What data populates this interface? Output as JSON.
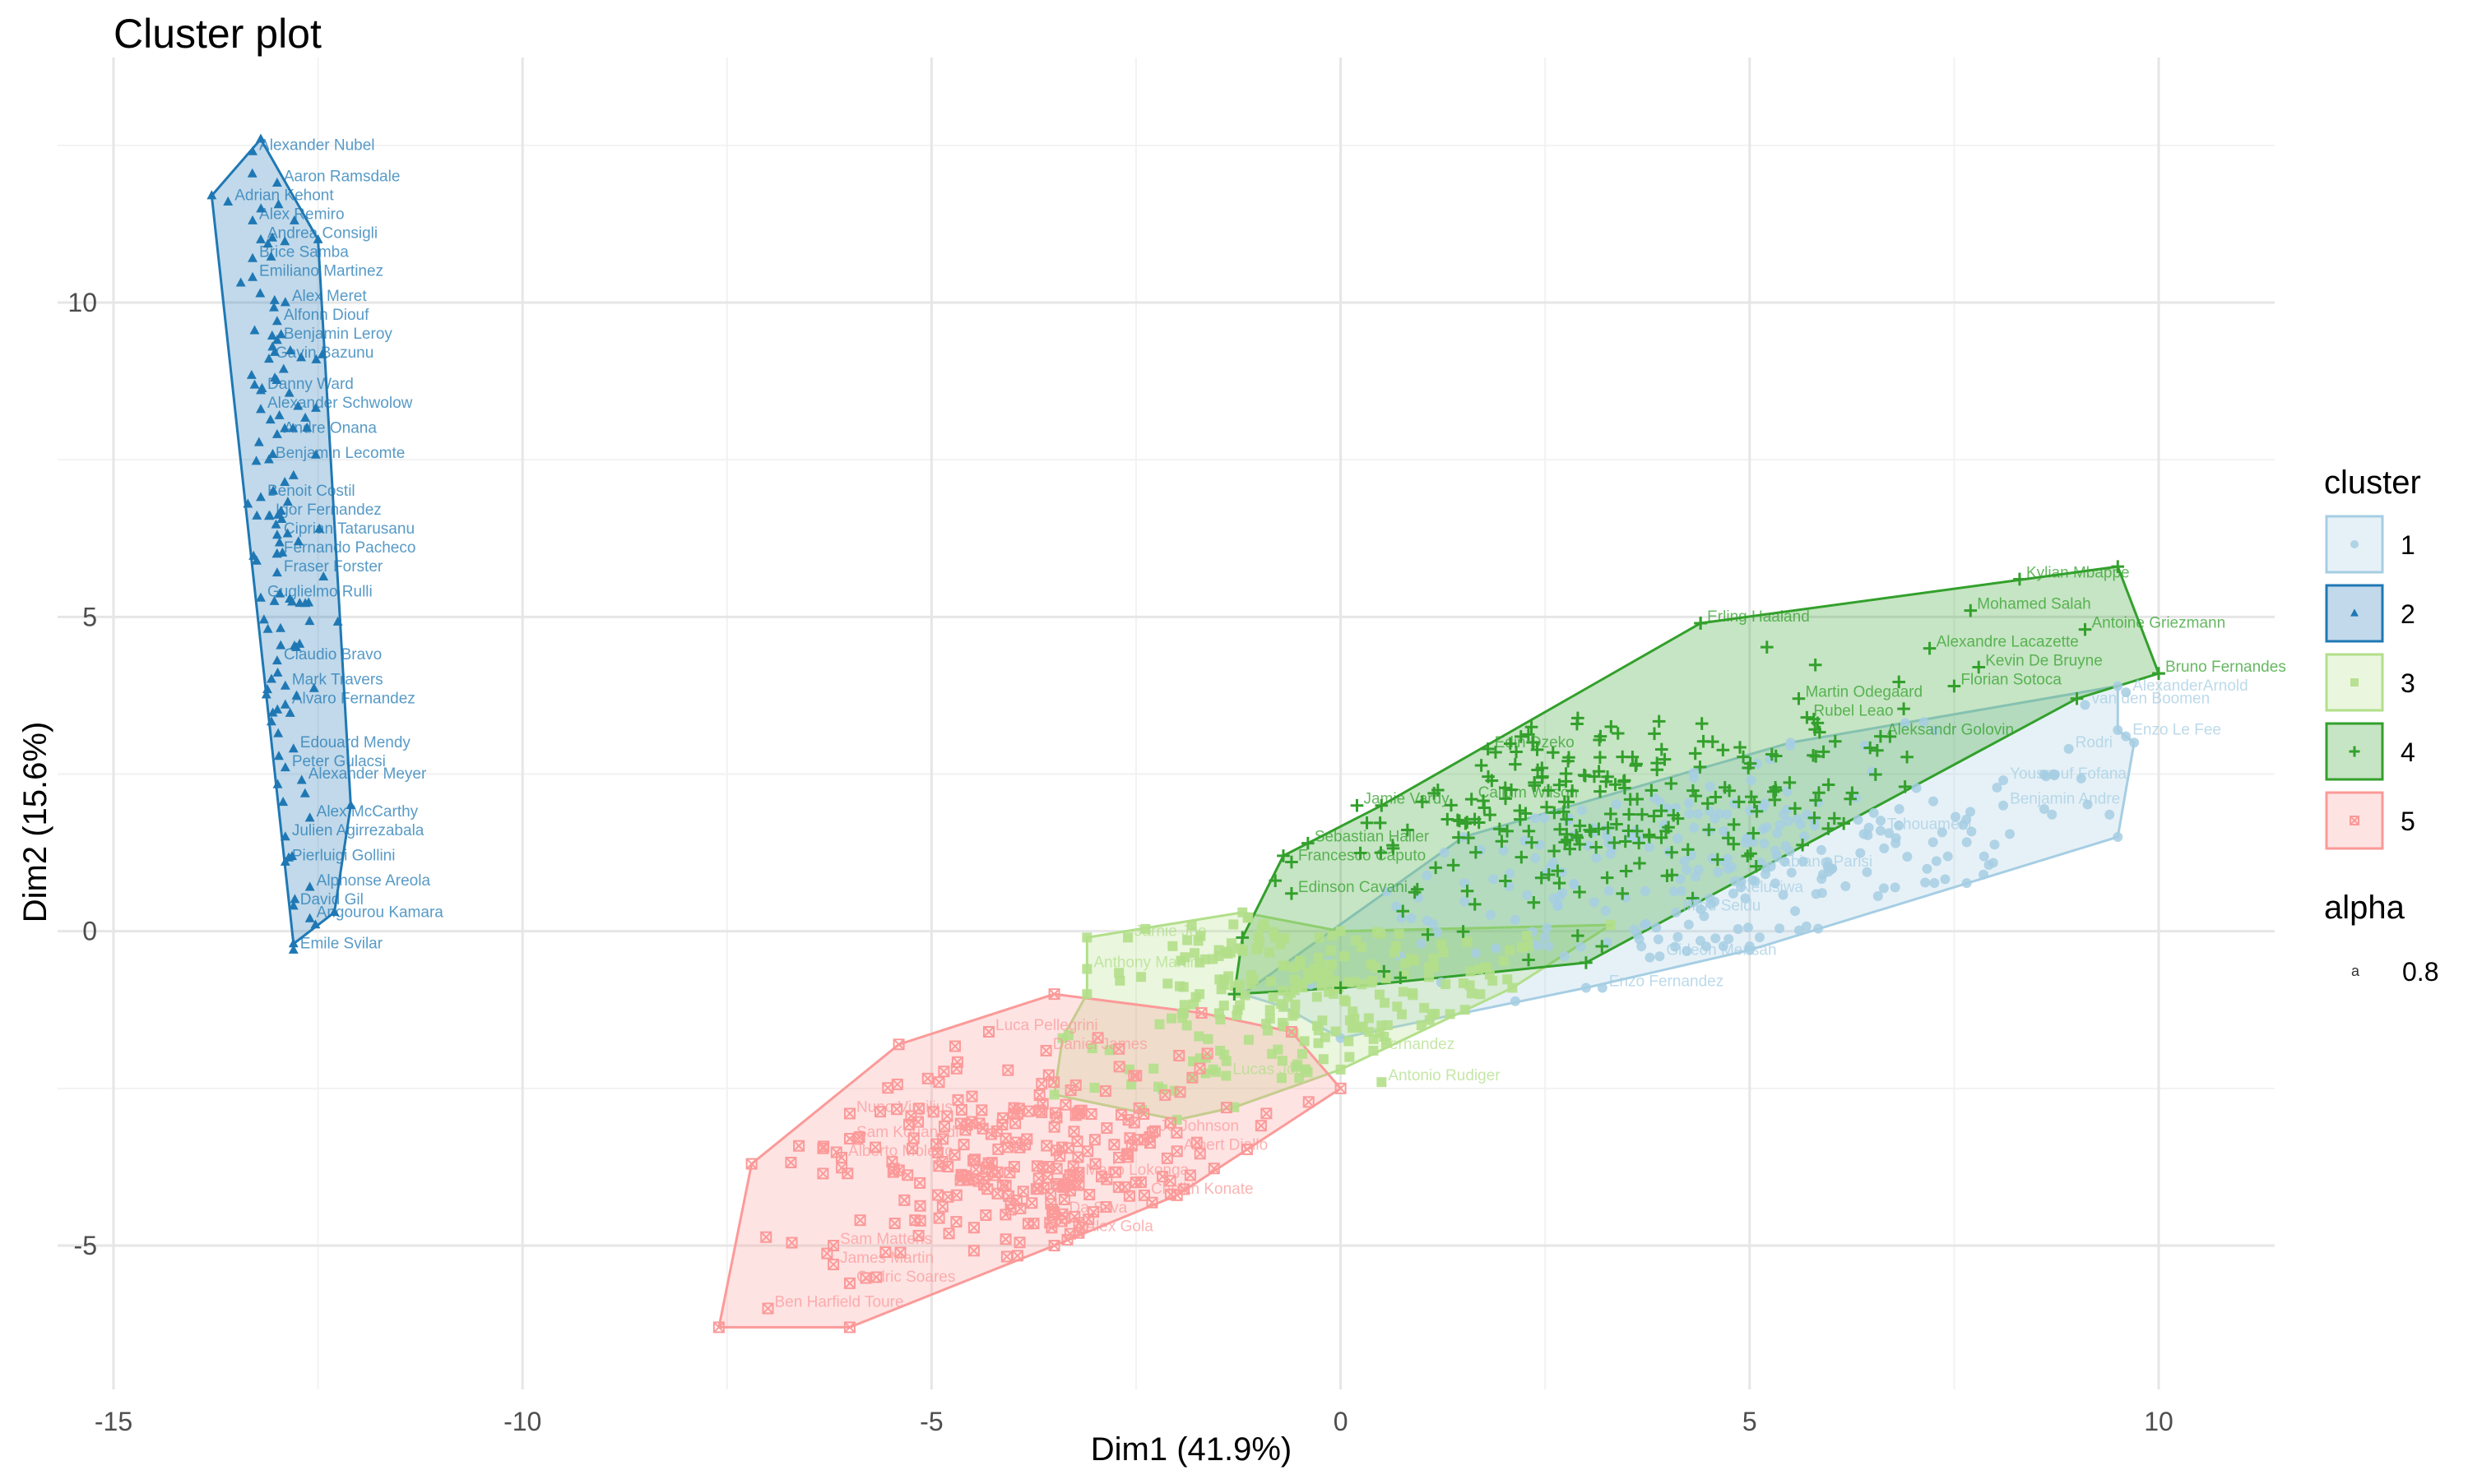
{
  "chart_data": {
    "type": "scatter",
    "title": "Cluster plot",
    "xlabel": "Dim1 (41.9%)",
    "ylabel": "Dim2 (15.6%)",
    "xlim": [
      -15,
      11
    ],
    "ylim": [
      -7,
      13.5
    ],
    "x_ticks": [
      -15,
      -10,
      -5,
      0,
      5,
      10
    ],
    "y_ticks": [
      -5,
      0,
      5,
      10
    ],
    "grid": true,
    "legend_position": "right",
    "legend": {
      "cluster_title": "cluster",
      "alpha_title": "alpha",
      "alpha_value": "0.8",
      "alpha_key_glyph": "a"
    },
    "colors": {
      "1": "#a6cee3",
      "2": "#1f78b4",
      "3": "#b2df8a",
      "4": "#33a02c",
      "5": "#fb9a99"
    },
    "clusters": [
      {
        "name": "1",
        "shape": "circle",
        "hull": [
          [
            -0.7,
            -1.2
          ],
          [
            -1.2,
            -1.0
          ],
          [
            1.5,
            1.5
          ],
          [
            5.5,
            3.0
          ],
          [
            9.5,
            3.9
          ],
          [
            9.5,
            3.2
          ],
          [
            9.7,
            3.0
          ],
          [
            9.5,
            1.5
          ],
          [
            5.0,
            -0.3
          ],
          [
            3.0,
            -0.9
          ],
          [
            0.0,
            -1.7
          ]
        ],
        "center": [
          4.8,
          1.0
        ],
        "spread": [
          2.6,
          1.0
        ],
        "n": 260,
        "labels": [
          {
            "text": "Enzo Le Fee",
            "x": 9.6,
            "y": 3.1
          },
          {
            "text": "Rodri",
            "x": 8.9,
            "y": 2.9
          },
          {
            "text": "Youssouf Fofana",
            "x": 8.1,
            "y": 2.4
          },
          {
            "text": "Benjamin Andre",
            "x": 8.1,
            "y": 2.0
          },
          {
            "text": "Tchouameni",
            "x": 6.6,
            "y": 1.6
          },
          {
            "text": "Fabiano Parisi",
            "x": 5.2,
            "y": 1.0
          },
          {
            "text": "Nelusiwa",
            "x": 4.8,
            "y": 0.6
          },
          {
            "text": "Mihu Seidu",
            "x": 4.1,
            "y": 0.3
          },
          {
            "text": "Gideon Mensah",
            "x": 3.9,
            "y": -0.4
          },
          {
            "text": "Enzo Fernandez",
            "x": 3.2,
            "y": -0.9
          },
          {
            "text": "van den Boomen",
            "x": 9.1,
            "y": 3.6
          },
          {
            "text": "AlexanderArnold",
            "x": 9.6,
            "y": 3.8
          }
        ]
      },
      {
        "name": "2",
        "shape": "triangle",
        "hull": [
          [
            -13.2,
            12.6
          ],
          [
            -13.8,
            11.7
          ],
          [
            -12.8,
            -0.2
          ],
          [
            -12.3,
            0.3
          ],
          [
            -12.1,
            2.0
          ],
          [
            -12.5,
            11.0
          ]
        ],
        "center": [
          -13.0,
          6.3
        ],
        "spread": [
          0.25,
          3.4
        ],
        "n": 95,
        "labels": [
          {
            "text": "Alexander Nubel",
            "x": -13.3,
            "y": 12.4
          },
          {
            "text": "Aaron Ramsdale",
            "x": -13.0,
            "y": 11.9
          },
          {
            "text": "Adrian Kehont",
            "x": -13.6,
            "y": 11.6
          },
          {
            "text": "Alex Remiro",
            "x": -13.3,
            "y": 11.3
          },
          {
            "text": "Andrea Consigli",
            "x": -13.2,
            "y": 11.0
          },
          {
            "text": "Brice Samba",
            "x": -13.3,
            "y": 10.7
          },
          {
            "text": "Emiliano Martinez",
            "x": -13.3,
            "y": 10.4
          },
          {
            "text": "Alex Meret",
            "x": -12.9,
            "y": 10.0
          },
          {
            "text": "Alfonn Diouf",
            "x": -13.0,
            "y": 9.7
          },
          {
            "text": "Benjamin Leroy",
            "x": -13.0,
            "y": 9.4
          },
          {
            "text": "Gavin Bazunu",
            "x": -13.1,
            "y": 9.1
          },
          {
            "text": "Danny Ward",
            "x": -13.2,
            "y": 8.6
          },
          {
            "text": "Alexander Schwolow",
            "x": -13.2,
            "y": 8.3
          },
          {
            "text": "Andre Onana",
            "x": -13.0,
            "y": 7.9
          },
          {
            "text": "Benjamin Lecomte",
            "x": -13.1,
            "y": 7.5
          },
          {
            "text": "Benoit Costil",
            "x": -13.2,
            "y": 6.9
          },
          {
            "text": "Igor Fernandez",
            "x": -13.1,
            "y": 6.6
          },
          {
            "text": "Ciprian Tatarusanu",
            "x": -13.0,
            "y": 6.3
          },
          {
            "text": "Fernando Pacheco",
            "x": -13.0,
            "y": 6.0
          },
          {
            "text": "Fraser Forster",
            "x": -13.0,
            "y": 5.7
          },
          {
            "text": "Guglielmo Rulli",
            "x": -13.2,
            "y": 5.3
          },
          {
            "text": "Claudio Bravo",
            "x": -13.0,
            "y": 4.3
          },
          {
            "text": "Mark Travers",
            "x": -12.9,
            "y": 3.9
          },
          {
            "text": "Alvaro Fernandez",
            "x": -12.9,
            "y": 3.6
          },
          {
            "text": "Edouard Mendy",
            "x": -12.8,
            "y": 2.9
          },
          {
            "text": "Peter Gulacsi",
            "x": -12.9,
            "y": 2.6
          },
          {
            "text": "Alexander Meyer",
            "x": -12.7,
            "y": 2.4
          },
          {
            "text": "Alex McCarthy",
            "x": -12.6,
            "y": 1.8
          },
          {
            "text": "Julien Agirrezabala",
            "x": -12.9,
            "y": 1.5
          },
          {
            "text": "Pierluigi Gollini",
            "x": -12.9,
            "y": 1.1
          },
          {
            "text": "Alphonse Areola",
            "x": -12.6,
            "y": 0.7
          },
          {
            "text": "David Gil",
            "x": -12.8,
            "y": 0.4
          },
          {
            "text": "Angourou Kamara",
            "x": -12.6,
            "y": 0.2
          },
          {
            "text": "Emile Svilar",
            "x": -12.8,
            "y": -0.3
          }
        ]
      },
      {
        "name": "3",
        "shape": "square",
        "hull": [
          [
            -3.5,
            -2.6
          ],
          [
            -3.4,
            -1.7
          ],
          [
            -3.1,
            -1.0
          ],
          [
            -3.1,
            -0.1
          ],
          [
            -1.2,
            0.3
          ],
          [
            0.0,
            0.0
          ],
          [
            3.3,
            0.1
          ],
          [
            2.1,
            -0.9
          ],
          [
            0.0,
            -2.2
          ],
          [
            -1.3,
            -2.8
          ],
          [
            -2.0,
            -3.0
          ]
        ],
        "center": [
          -0.3,
          -1.0
        ],
        "spread": [
          1.6,
          0.9
        ],
        "n": 240,
        "labels": [
          {
            "text": "Anthony Martin",
            "x": -3.1,
            "y": -0.6
          },
          {
            "text": "Jarnie Joe",
            "x": -2.6,
            "y": -0.1
          },
          {
            "text": "Lucas Joao",
            "x": -1.4,
            "y": -2.3
          },
          {
            "text": "Antonio Rudiger",
            "x": 0.5,
            "y": -2.4
          },
          {
            "text": "Fernandez",
            "x": 0.4,
            "y": -1.9
          }
        ]
      },
      {
        "name": "4",
        "shape": "plus",
        "hull": [
          [
            -1.3,
            -1.0
          ],
          [
            -1.2,
            -0.1
          ],
          [
            -0.7,
            1.2
          ],
          [
            0.5,
            2.0
          ],
          [
            4.4,
            4.9
          ],
          [
            9.5,
            5.8
          ],
          [
            10.0,
            4.1
          ],
          [
            9.0,
            3.7
          ],
          [
            3.0,
            -0.5
          ],
          [
            0.0,
            -0.9
          ]
        ],
        "center": [
          3.4,
          1.9
        ],
        "spread": [
          2.1,
          0.9
        ],
        "n": 230,
        "labels": [
          {
            "text": "Kylian Mbappe",
            "x": 8.3,
            "y": 5.6
          },
          {
            "text": "Mohamed Salah",
            "x": 7.7,
            "y": 5.1
          },
          {
            "text": "Erling Haaland",
            "x": 4.4,
            "y": 4.9
          },
          {
            "text": "Antoine Griezmann",
            "x": 9.1,
            "y": 4.8
          },
          {
            "text": "Alexandre Lacazette",
            "x": 7.2,
            "y": 4.5
          },
          {
            "text": "Kevin De Bruyne",
            "x": 7.8,
            "y": 4.2
          },
          {
            "text": "Florian Sotoca",
            "x": 7.5,
            "y": 3.9
          },
          {
            "text": "Bruno Fernandes",
            "x": 10.0,
            "y": 4.1
          },
          {
            "text": "Martin Odegaard",
            "x": 5.6,
            "y": 3.7
          },
          {
            "text": "Rubel Leao",
            "x": 5.7,
            "y": 3.4
          },
          {
            "text": "Aleksandr Golovin",
            "x": 6.6,
            "y": 3.1
          },
          {
            "text": "Edin Dzeko",
            "x": 1.8,
            "y": 2.9
          },
          {
            "text": "Jamie Vardy",
            "x": 0.2,
            "y": 2.0
          },
          {
            "text": "Callum Wilson",
            "x": 1.6,
            "y": 2.1
          },
          {
            "text": "Sebastian Haller",
            "x": -0.4,
            "y": 1.4
          },
          {
            "text": "Francesco Caputo",
            "x": -0.6,
            "y": 1.1
          },
          {
            "text": "Edinson Cavani",
            "x": -0.6,
            "y": 0.6
          }
        ]
      },
      {
        "name": "5",
        "shape": "square-x",
        "hull": [
          [
            -7.6,
            -6.3
          ],
          [
            -6.0,
            -6.3
          ],
          [
            -3.5,
            -5.0
          ],
          [
            -2.0,
            -4.2
          ],
          [
            0.0,
            -2.5
          ],
          [
            -0.6,
            -1.6
          ],
          [
            -1.7,
            -1.3
          ],
          [
            -3.5,
            -1.0
          ],
          [
            -5.4,
            -1.8
          ],
          [
            -7.2,
            -3.7
          ]
        ],
        "center": [
          -3.8,
          -3.8
        ],
        "spread": [
          1.3,
          0.9
        ],
        "n": 260,
        "labels": [
          {
            "text": "Ben Harfield Toure",
            "x": -7.0,
            "y": -6.0
          },
          {
            "text": "Cedric Soares",
            "x": -6.0,
            "y": -5.6
          },
          {
            "text": "James Martin",
            "x": -6.2,
            "y": -5.3
          },
          {
            "text": "Sam Mattens",
            "x": -6.2,
            "y": -5.0
          },
          {
            "text": "Alex Gola",
            "x": -3.2,
            "y": -4.8
          },
          {
            "text": "Da Silva",
            "x": -3.4,
            "y": -4.5
          },
          {
            "text": "Cheikh Konate",
            "x": -2.4,
            "y": -4.2
          },
          {
            "text": "Mario Lokonga",
            "x": -3.2,
            "y": -3.9
          },
          {
            "text": "Albert Diallo",
            "x": -2.0,
            "y": -3.5
          },
          {
            "text": "Jo Johnson",
            "x": -2.3,
            "y": -3.2
          },
          {
            "text": "Nuno Virgilius",
            "x": -6.0,
            "y": -2.9
          },
          {
            "text": "Sam Kouanedi",
            "x": -6.0,
            "y": -3.3
          },
          {
            "text": "Alberto Moleiro",
            "x": -6.1,
            "y": -3.6
          },
          {
            "text": "Luca Pellegrini",
            "x": -4.3,
            "y": -1.6
          },
          {
            "text": "Daniel James",
            "x": -3.6,
            "y": -1.9
          }
        ]
      }
    ]
  }
}
